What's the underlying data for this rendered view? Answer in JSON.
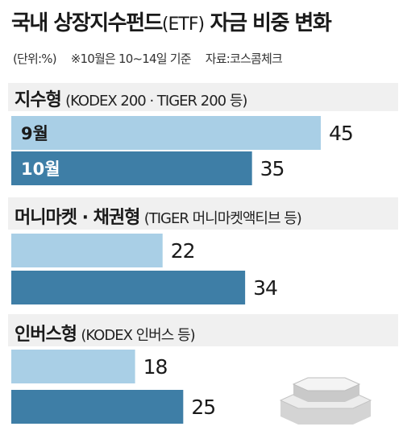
{
  "title": {
    "main": "국내 상장지수펀드",
    "etf": "(ETF)",
    "rest": " 자금 비중 변화"
  },
  "meta": {
    "unit": "(단위:%)",
    "note": "※10월은 10~14일 기준",
    "source": "자료:코스콤체크"
  },
  "colors": {
    "september": "#a9cfe6",
    "october": "#3e7ea6"
  },
  "chart_data": {
    "type": "bar",
    "orientation": "horizontal",
    "categories": [
      "지수형",
      "머니마켓·채권형",
      "인버스형"
    ],
    "category_notes": [
      "(KODEX 200 · TIGER 200 등)",
      "(TIGER 머니마켓액티브 등)",
      "(KODEX 인버스 등)"
    ],
    "series": [
      {
        "name": "9월",
        "values": [
          45,
          22,
          18
        ]
      },
      {
        "name": "10월",
        "values": [
          35,
          34,
          25
        ]
      }
    ],
    "unit": "%"
  },
  "groups": [
    {
      "name": "지수형",
      "note": "(KODEX 200 · TIGER 200 등)"
    },
    {
      "name": "머니마켓 · 채권형",
      "note": "(TIGER 머니마켓액티브 등)"
    },
    {
      "name": "인버스형",
      "note": "(KODEX 인버스 등)"
    }
  ]
}
